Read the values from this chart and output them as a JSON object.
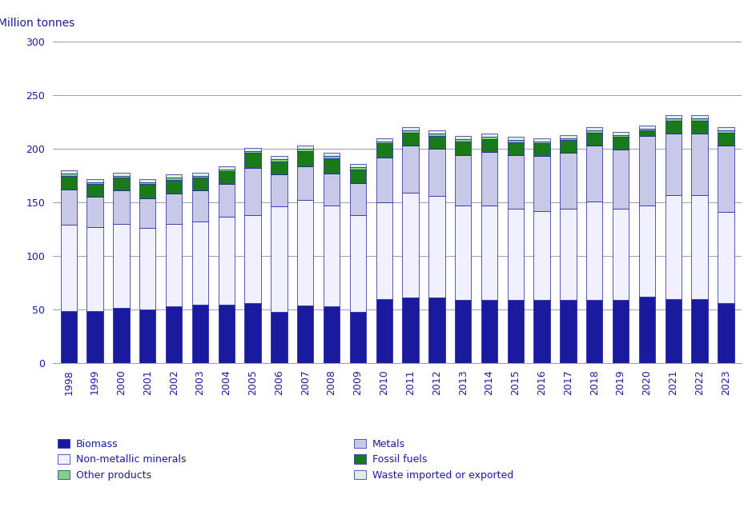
{
  "years": [
    1998,
    1999,
    2000,
    2001,
    2002,
    2003,
    2004,
    2005,
    2006,
    2007,
    2008,
    2009,
    2010,
    2011,
    2012,
    2013,
    2014,
    2015,
    2016,
    2017,
    2018,
    2019,
    2020,
    2021,
    2022,
    2023
  ],
  "biomass": [
    49,
    49,
    52,
    50,
    53,
    55,
    55,
    56,
    48,
    54,
    53,
    48,
    60,
    61,
    61,
    59,
    59,
    59,
    59,
    59,
    59,
    59,
    62,
    60,
    60,
    56
  ],
  "non_metallic": [
    80,
    78,
    78,
    76,
    77,
    77,
    82,
    82,
    98,
    98,
    94,
    90,
    90,
    98,
    95,
    88,
    88,
    85,
    83,
    85,
    92,
    85,
    85,
    97,
    97,
    85
  ],
  "metals": [
    33,
    28,
    31,
    28,
    28,
    29,
    30,
    44,
    30,
    32,
    30,
    30,
    42,
    44,
    44,
    47,
    50,
    50,
    51,
    52,
    52,
    55,
    65,
    57,
    57,
    62
  ],
  "fossil_fuels": [
    13,
    12,
    12,
    13,
    13,
    12,
    12,
    14,
    12,
    14,
    14,
    13,
    13,
    12,
    12,
    13,
    12,
    12,
    12,
    12,
    12,
    12,
    5,
    12,
    12,
    12
  ],
  "other_products": [
    2,
    2,
    2,
    2,
    2,
    2,
    2,
    2,
    2,
    2,
    2,
    2,
    2,
    2,
    2,
    2,
    2,
    2,
    2,
    2,
    2,
    2,
    2,
    2,
    2,
    2
  ],
  "waste": [
    3,
    3,
    3,
    3,
    3,
    3,
    3,
    3,
    3,
    3,
    3,
    3,
    3,
    3,
    3,
    3,
    3,
    3,
    3,
    3,
    3,
    3,
    3,
    3,
    3,
    3
  ],
  "colors": {
    "biomass": "#1a1a9e",
    "non_metallic": "#f0f0ff",
    "metals": "#c8c8e8",
    "fossil_fuels": "#1a7a1a",
    "other_products": "#7cd47c",
    "waste": "#e0f0e0"
  },
  "ylabel": "Million tonnes",
  "ylim": [
    0,
    300
  ],
  "yticks": [
    0,
    50,
    100,
    150,
    200,
    250,
    300
  ],
  "background_color": "#ffffff",
  "grid_color": "#9999bb",
  "bar_edge_color": "#1a1a9e",
  "legend": [
    {
      "label": "Biomass",
      "color": "#1a1a9e"
    },
    {
      "label": "Metals",
      "color": "#c8c8e8"
    },
    {
      "label": "Non-metallic minerals",
      "color": "#f0f0ff"
    },
    {
      "label": "Fossil fuels",
      "color": "#1a7a1a"
    },
    {
      "label": "Other products",
      "color": "#7cd47c"
    },
    {
      "label": "Waste imported or exported",
      "color": "#e0f0e0"
    }
  ]
}
